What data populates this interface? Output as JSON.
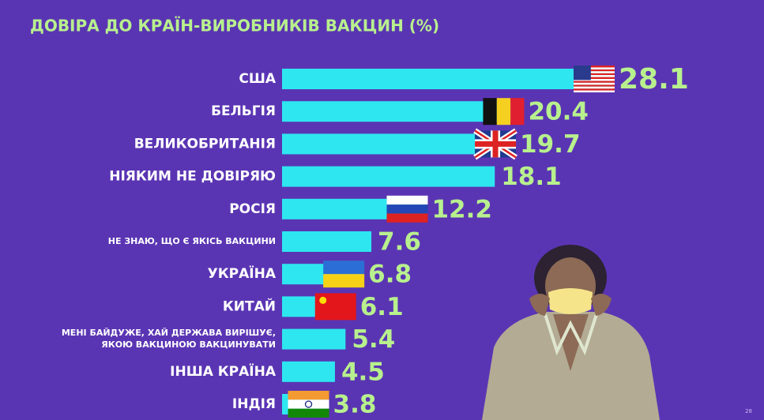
{
  "chart_data": {
    "type": "barh",
    "title": "ДОВІРА ДО КРАЇН-ВИРОБНИКІВ ВАКЦИН (%)",
    "categories": [
      "США",
      "БЕЛЬГІЯ",
      "ВЕЛИКОБРИТАНІЯ",
      "НІЯКИМ НЕ ДОВІРЯЮ",
      "РОСІЯ",
      "НЕ ЗНАЮ, ЩО Є ЯКІСЬ ВАКЦИНИ",
      "УКРАЇНА",
      "КИТАЙ",
      "МЕНІ БАЙДУЖЕ, ХАЙ ДЕРЖАВА ВИРІШУЄ,\nЯКОЮ ВАКЦИНОЮ ВАКЦИНУВАТИ",
      "ІНША КРАЇНА",
      "ІНДІЯ"
    ],
    "values": [
      28.1,
      20.4,
      19.7,
      18.1,
      12.2,
      7.6,
      6.8,
      6.1,
      5.4,
      4.5,
      3.8
    ],
    "color": "#2ee6f0",
    "xlim": [
      0,
      40
    ]
  },
  "page_number": "28"
}
